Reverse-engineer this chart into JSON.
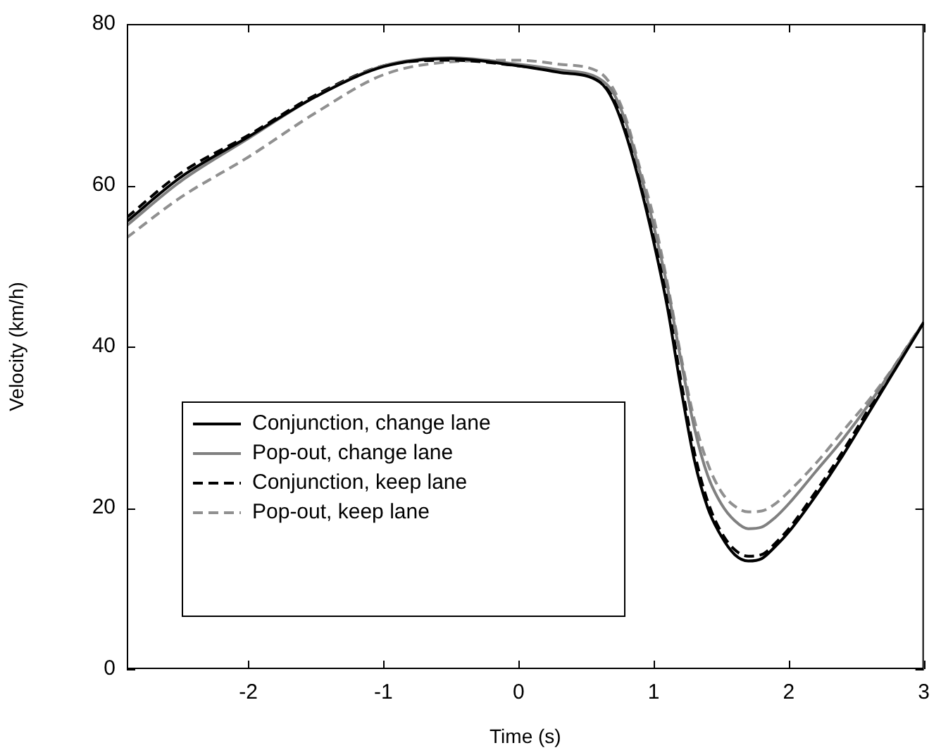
{
  "chart_data": {
    "type": "line",
    "xlabel": "Time (s)",
    "ylabel": "Velocity (km/h)",
    "x": [
      -2.9,
      -2.5,
      -2,
      -1.5,
      -1,
      -0.5,
      0,
      0.3,
      0.6,
      0.7,
      0.8,
      0.9,
      1.0,
      1.1,
      1.2,
      1.3,
      1.4,
      1.5,
      1.6,
      1.7,
      1.8,
      1.9,
      2.0,
      2.2,
      2.4,
      2.6,
      2.8,
      3.0
    ],
    "series": [
      {
        "name": "Conjunction, change lane",
        "color": "#000000",
        "line_style": "solid",
        "values": [
          55.5,
          61,
          66,
          71,
          74.7,
          75.7,
          74.8,
          74,
          72.8,
          70.5,
          66,
          60,
          53,
          45,
          35,
          26,
          20,
          16.5,
          14.2,
          13.4,
          13.7,
          15.2,
          17,
          21.5,
          26.5,
          32,
          37.5,
          43
        ]
      },
      {
        "name": "Pop-out, change lane",
        "color": "#808080",
        "line_style": "solid",
        "values": [
          55,
          60.5,
          65.8,
          71,
          74.8,
          75.8,
          75,
          74.3,
          73.2,
          71.5,
          67.5,
          61.5,
          55,
          47.5,
          38.5,
          30,
          24,
          20.5,
          18.4,
          17.4,
          17.6,
          18.8,
          20.5,
          24.5,
          28.5,
          33,
          38,
          43
        ]
      },
      {
        "name": "Conjunction, keep lane",
        "color": "#000000",
        "line_style": "dashed",
        "values": [
          56,
          61.5,
          66.2,
          71.2,
          74.8,
          75.5,
          74.8,
          74.1,
          72.9,
          70.8,
          66.5,
          60.5,
          54,
          46,
          36,
          27,
          20.8,
          17,
          14.8,
          14,
          14.2,
          15.6,
          17.4,
          22,
          27,
          32.5,
          38,
          43
        ]
      },
      {
        "name": "Pop-out, keep lane",
        "color": "#909090",
        "line_style": "dashed",
        "values": [
          53.5,
          58.5,
          63.5,
          69,
          73.7,
          75.3,
          75.5,
          75,
          74,
          72,
          68,
          62,
          56,
          48,
          39,
          31,
          25.5,
          22,
          20.2,
          19.5,
          19.6,
          20.5,
          22,
          25.5,
          29.5,
          33.5,
          38,
          43
        ]
      }
    ],
    "xlim": [
      -2.9,
      3
    ],
    "xticks": [
      -2,
      -1,
      0,
      1,
      2,
      3
    ],
    "ylim": [
      0,
      80
    ],
    "yticks": [
      0,
      20,
      40,
      60,
      80
    ],
    "grid": false,
    "legend": "bottom left",
    "marker": "none"
  }
}
